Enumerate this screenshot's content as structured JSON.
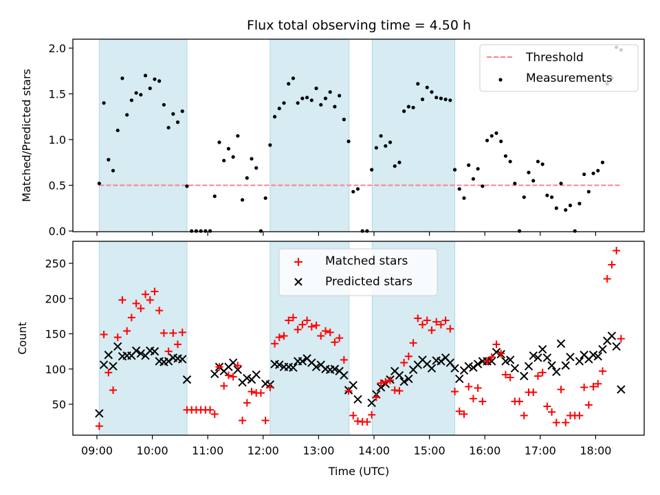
{
  "chart_data": [
    {
      "type": "scatter",
      "panel": "top",
      "title": "Flux total observing time = 4.50 h",
      "ylabel": "Matched/Predicted stars",
      "xlabel": "",
      "ylim": [
        0.0,
        2.1
      ],
      "yticks": [
        "0.0",
        "0.5",
        "1.0",
        "1.5",
        "2.0"
      ],
      "ytick_values": [
        0.0,
        0.5,
        1.0,
        1.5,
        2.0
      ],
      "grid": false,
      "legend": {
        "placement": "top-right",
        "entries": [
          "Threshold",
          "Measurements"
        ]
      },
      "threshold": {
        "name": "Threshold",
        "value": 0.5,
        "color": "#ff8080",
        "style": "dashed",
        "x_start_min": 2.5,
        "x_end_min": 567.5
      },
      "series": [
        {
          "name": "Measurements",
          "color": "#000000",
          "marker": "dot",
          "values": [
            0.52,
            1.4,
            0.78,
            0.66,
            1.1,
            1.67,
            1.27,
            1.43,
            1.51,
            1.49,
            1.7,
            1.56,
            1.66,
            1.64,
            1.38,
            1.13,
            1.28,
            1.19,
            1.31,
            0.49,
            0,
            0,
            0,
            0,
            0,
            0.38,
            0.97,
            0.77,
            0.9,
            0.81,
            1.04,
            0.34,
            0.58,
            0.79,
            0.69,
            0,
            0.36,
            0.94,
            1.25,
            1.34,
            1.4,
            1.61,
            1.67,
            1.4,
            1.45,
            1.46,
            1.43,
            1.56,
            1.38,
            1.45,
            1.52,
            1.36,
            1.48,
            1.22,
            0.98,
            0.43,
            0.46,
            0,
            0,
            0.67,
            0.91,
            1.04,
            0.93,
            0.97,
            0.71,
            0.75,
            1.31,
            1.36,
            1.35,
            1.61,
            1.44,
            1.57,
            1.52,
            1.46,
            1.45,
            1.44,
            1.43,
            0.67,
            0.46,
            0.36,
            0.72,
            0.57,
            0.68,
            0.49,
            0.99,
            1.04,
            1.07,
            0.98,
            0.82,
            0.76,
            0.52,
            0,
            0.37,
            0.64,
            0.55,
            0.76,
            0.73,
            0.39,
            0.37,
            0.25,
            0.52,
            0.23,
            0.28,
            0,
            0.3,
            0.62,
            0.43,
            0.63,
            0.66,
            0.75,
            1.61,
            1.67,
            2.01,
            1.98
          ]
        }
      ]
    },
    {
      "type": "scatter",
      "panel": "bottom",
      "title": "",
      "ylabel": "Count",
      "xlabel": "Time (UTC)",
      "ylim": [
        10,
        282
      ],
      "yticks": [
        "50",
        "100",
        "150",
        "200",
        "250"
      ],
      "ytick_values": [
        50,
        100,
        150,
        200,
        250
      ],
      "grid": false,
      "legend": {
        "placement": "upper-center",
        "entries": [
          "Matched stars",
          "Predicted stars"
        ]
      },
      "series": [
        {
          "name": "Matched stars",
          "color": "#ff0000",
          "marker": "plus",
          "values": [
            19,
            149,
            95,
            70,
            145,
            198,
            154,
            173,
            193,
            186,
            206,
            198,
            210,
            183,
            151,
            125,
            151,
            135,
            152,
            42,
            42,
            42,
            42,
            42,
            42,
            36,
            103,
            76,
            91,
            89,
            105,
            27,
            52,
            68,
            66,
            66,
            27,
            74,
            136,
            145,
            147,
            169,
            173,
            156,
            163,
            169,
            160,
            162,
            147,
            154,
            152,
            138,
            144,
            113,
            69,
            34,
            26,
            25,
            25,
            35,
            60,
            80,
            82,
            84,
            70,
            69,
            109,
            118,
            137,
            172,
            163,
            169,
            155,
            167,
            163,
            169,
            157,
            68,
            40,
            36,
            75,
            58,
            73,
            54,
            111,
            117,
            135,
            122,
            92,
            88,
            54,
            54,
            34,
            67,
            67,
            90,
            95,
            47,
            39,
            24,
            71,
            24,
            34,
            34,
            34,
            74,
            49,
            75,
            79,
            97,
            228,
            248,
            268,
            143
          ]
        },
        {
          "name": "Predicted stars",
          "color": "#000000",
          "marker": "x",
          "values": [
            37,
            106,
            120,
            104,
            132,
            118,
            119,
            119,
            126,
            122,
            119,
            126,
            125,
            111,
            110,
            111,
            116,
            115,
            114,
            85,
            null,
            null,
            null,
            null,
            null,
            93,
            103,
            97,
            103,
            109,
            99,
            81,
            87,
            85,
            92,
            null,
            79,
            78,
            107,
            106,
            103,
            103,
            102,
            111,
            111,
            115,
            109,
            103,
            106,
            100,
            99,
            100,
            97,
            91,
            70,
            77,
            57,
            null,
            null,
            52,
            64,
            74,
            79,
            85,
            97,
            91,
            82,
            86,
            99,
            106,
            113,
            107,
            101,
            112,
            111,
            116,
            109,
            101,
            86,
            98,
            104,
            102,
            107,
            111,
            111,
            111,
            124,
            121,
            111,
            113,
            101,
            null,
            90,
            104,
            119,
            116,
            128,
            116,
            105,
            96,
            136,
            105,
            117,
            null,
            111,
            120,
            114,
            120,
            118,
            128,
            140,
            147,
            132,
            71
          ]
        }
      ]
    }
  ],
  "x_axis": {
    "label": "Time (UTC)",
    "range_min": [
      -20,
      595
    ],
    "sample_start_min": 2.5,
    "sample_interval_min": 5,
    "ticks": [
      "09:00",
      "10:00",
      "11:00",
      "12:00",
      "13:00",
      "14:00",
      "15:00",
      "16:00",
      "17:00",
      "18:00"
    ],
    "tick_values_min": [
      0,
      60,
      120,
      180,
      240,
      300,
      360,
      420,
      480,
      540
    ]
  },
  "observing_windows": {
    "color": "#add8e6",
    "spans_min": [
      [
        2.5,
        97.5
      ],
      [
        187.5,
        273
      ],
      [
        298,
        387.5
      ]
    ]
  },
  "labels": {
    "title": "Flux total observing time = 4.50 h",
    "top_ylabel": "Matched/Predicted stars",
    "bottom_ylabel": "Count",
    "xlabel": "Time (UTC)",
    "legend_threshold": "Threshold",
    "legend_measurements": "Measurements",
    "legend_matched": "Matched stars",
    "legend_predicted": "Predicted stars"
  }
}
